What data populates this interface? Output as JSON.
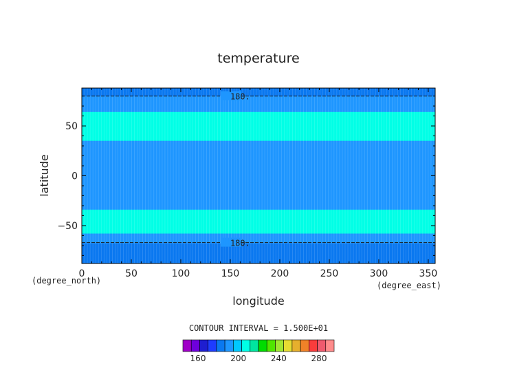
{
  "chart_data": {
    "type": "heatmap",
    "title": "temperature",
    "xlabel": "longitude",
    "ylabel": "latitude",
    "x_unit": "(degree_east)",
    "y_unit": "(degree_north)",
    "xlim": [
      0,
      357
    ],
    "ylim": [
      -88,
      88
    ],
    "x_ticks": [
      "0",
      "50",
      "100",
      "150",
      "200",
      "250",
      "300",
      "350"
    ],
    "y_ticks": [
      "50",
      "0",
      "−50"
    ],
    "contour_interval_label": "CONTOUR INTERVAL = 1.500E+01",
    "contour_labels": [
      {
        "text": "180.",
        "lon": 150,
        "lat": 80
      },
      {
        "text": "180.",
        "lon": 150,
        "lat": -67
      }
    ],
    "bands": [
      {
        "lat_from": 80,
        "lat_to": 88,
        "level": "165-180",
        "color": "#0a78f0"
      },
      {
        "lat_from": 67,
        "lat_to": 80,
        "level": "180-195",
        "color": "#1e96ff"
      },
      {
        "lat_from": 35,
        "lat_to": 64,
        "level": "195-210",
        "color": "#00ffe6"
      },
      {
        "lat_from": -34,
        "lat_to": 35,
        "level": "180-195",
        "color": "#1e96ff"
      },
      {
        "lat_from": -58,
        "lat_to": -34,
        "level": "195-210",
        "color": "#00ffe6"
      },
      {
        "lat_from": -68,
        "lat_to": -58,
        "level": "180-195",
        "color": "#1e96ff"
      },
      {
        "lat_from": -88,
        "lat_to": -68,
        "level": "165-180",
        "color": "#0a78f0"
      }
    ],
    "colorbar": {
      "tick_labels": [
        "160",
        "200",
        "240",
        "280"
      ],
      "colors": [
        "#a000c8",
        "#6e00dc",
        "#1e1ed0",
        "#1e3cff",
        "#0a78f0",
        "#1e96ff",
        "#00c8ff",
        "#00ffe6",
        "#00e6a0",
        "#00dc00",
        "#50e600",
        "#a0e632",
        "#e6dc32",
        "#e6af2d",
        "#f08228",
        "#fa3c3c",
        "#f05a6e",
        "#ff8c8c"
      ]
    }
  }
}
